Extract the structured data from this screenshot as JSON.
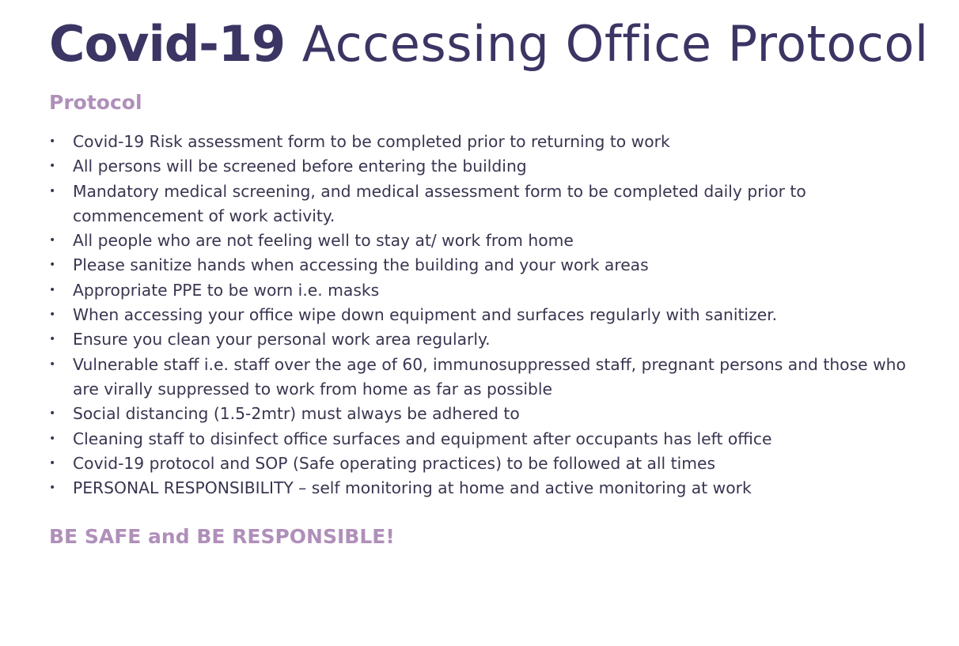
{
  "title": {
    "bold_part": "Covid-19",
    "light_part": "Accessing Office Protocol"
  },
  "section_heading": "Protocol",
  "bullet_char": "•",
  "items": [
    "Covid-19 Risk assessment form to be completed prior to returning to work",
    "All persons will be screened before entering the building",
    "Mandatory medical screening, and medical assessment form to be completed daily prior to commencement of work activity.",
    "All people who are not feeling well to stay at/ work from home",
    "Please sanitize hands when accessing the building and your work areas",
    "Appropriate PPE to be worn i.e. masks",
    "When accessing your office wipe down equipment and surfaces regularly with sanitizer.",
    "Ensure you clean your personal work area regularly.",
    "Vulnerable staff i.e. staff over the age of 60, immunosuppressed staff, pregnant persons and those who are virally suppressed to work from home as far as possible",
    "Social distancing (1.5-2mtr) must always be adhered to",
    "Cleaning staff to disinfect office surfaces and equipment after occupants has left office",
    "Covid-19 protocol and SOP (Safe operating practices) to be followed at all times",
    "PERSONAL RESPONSIBILITY – self monitoring at home and active monitoring at work"
  ],
  "footer_slogan": "BE SAFE and BE RESPONSIBLE!",
  "colors": {
    "title": "#3b3564",
    "accent": "#b08fba",
    "body_text": "#3a3550"
  }
}
